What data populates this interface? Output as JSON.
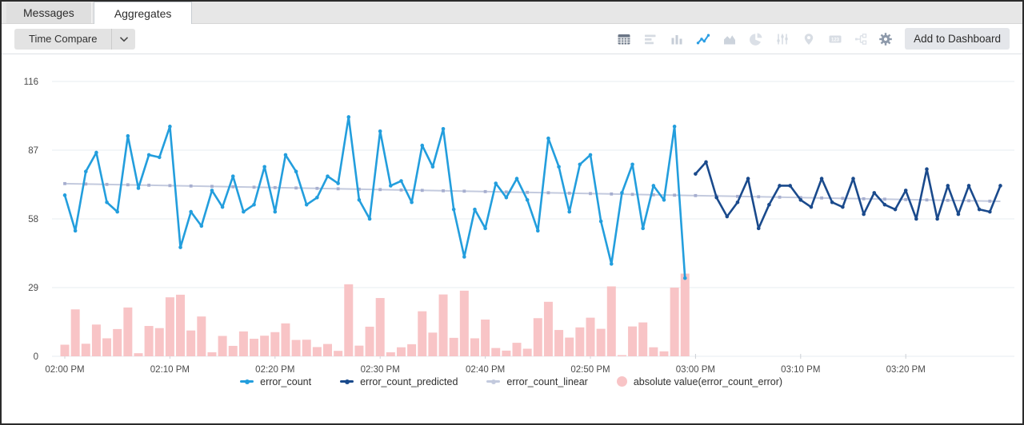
{
  "tabs": [
    {
      "label": "Messages",
      "active": false
    },
    {
      "label": "Aggregates",
      "active": true
    }
  ],
  "toolbar": {
    "time_compare_label": "Time Compare",
    "add_to_dashboard_label": "Add to Dashboard",
    "icons": [
      {
        "name": "table-icon",
        "shape": "table",
        "color": "#6b7686",
        "active": false
      },
      {
        "name": "horizontal-bar-chart-icon",
        "shape": "hbars",
        "color": "#d6dbe2",
        "active": false
      },
      {
        "name": "column-chart-icon",
        "shape": "columns",
        "color": "#c6cdd7",
        "active": false
      },
      {
        "name": "line-chart-icon",
        "shape": "line",
        "color": "#2d9fe4",
        "active": true
      },
      {
        "name": "area-chart-icon",
        "shape": "area",
        "color": "#ccd3dc",
        "active": false
      },
      {
        "name": "pie-chart-icon",
        "shape": "pie",
        "color": "#dbe0e7",
        "active": false
      },
      {
        "name": "sliders-icon",
        "shape": "sliders",
        "color": "#d6dbe2",
        "active": false
      },
      {
        "name": "map-pin-icon",
        "shape": "pin",
        "color": "#d8dde4",
        "active": false
      },
      {
        "name": "number-format-icon",
        "shape": "num123",
        "color": "#d8dde4",
        "active": false
      },
      {
        "name": "hierarchy-icon",
        "shape": "tree",
        "color": "#dde2e8",
        "active": false
      }
    ],
    "gear_icon": {
      "name": "gear-icon",
      "color": "#8e9aab"
    }
  },
  "chart_data": {
    "type": "line",
    "title": "",
    "xlabel": "",
    "ylabel": "",
    "grid": true,
    "legend_position": "bottom",
    "y_axis": {
      "ticks": [
        0,
        29,
        58,
        87,
        116
      ],
      "ylim": [
        0,
        116
      ]
    },
    "x_axis": {
      "tick_labels": [
        "02:00 PM",
        "02:10 PM",
        "02:20 PM",
        "02:30 PM",
        "02:40 PM",
        "02:50 PM",
        "03:00 PM",
        "03:10 PM",
        "03:20 PM"
      ],
      "minutes_per_tick": 10,
      "start_time": "02:00 PM",
      "point_interval_minutes": 1
    },
    "series": [
      {
        "name": "error_count",
        "type": "line",
        "color": "#239edd",
        "start_minute": 0,
        "step_minutes": 1,
        "values": [
          68,
          53,
          78,
          86,
          65,
          61,
          93,
          71,
          85,
          84,
          97,
          46,
          61,
          55,
          70,
          63,
          76,
          61,
          64,
          80,
          61,
          85,
          78,
          64,
          67,
          76,
          73,
          101,
          66,
          58,
          95,
          72,
          74,
          65,
          89,
          80,
          96,
          62,
          42,
          62,
          54,
          73,
          67,
          75,
          66,
          53,
          92,
          80,
          61,
          81,
          85,
          57,
          39,
          69,
          81,
          54,
          72,
          66,
          97,
          33
        ]
      },
      {
        "name": "error_count_predicted",
        "type": "line",
        "color": "#1a4a8c",
        "start_minute": 60,
        "step_minutes": 1,
        "values": [
          77,
          82,
          67,
          59,
          65,
          75,
          54,
          64,
          72,
          72,
          66,
          63,
          75,
          65,
          63,
          75,
          60,
          69,
          64,
          62,
          70,
          58,
          79,
          58,
          72,
          60,
          72,
          62,
          61,
          72
        ]
      },
      {
        "name": "error_count_linear",
        "type": "trend",
        "color": "#c3cade",
        "marker_color": "#a6aecf",
        "start_minute": 0,
        "end_minute": 89,
        "start_value": 72.9,
        "end_value": 65.4
      },
      {
        "name": "absolute value(error_count_error)",
        "type": "bar",
        "color": "#f8c4c6",
        "start_minute": 0,
        "step_minutes": 1,
        "values": [
          4.9,
          19.8,
          5.3,
          13.4,
          7.6,
          11.5,
          20.6,
          1.3,
          12.8,
          11.9,
          24.9,
          26,
          10.9,
          16.8,
          1.7,
          8.6,
          4.4,
          10.5,
          7.4,
          8.7,
          10.2,
          13.9,
          6.9,
          7,
          3.9,
          5.2,
          2.3,
          30.4,
          4.5,
          12.5,
          24.6,
          1.7,
          3.8,
          5.1,
          19,
          10,
          26.1,
          7.8,
          27.7,
          7.6,
          15.5,
          3.5,
          2.4,
          5.7,
          3.2,
          16.1,
          23,
          11.1,
          7.9,
          12.2,
          16.3,
          11.6,
          29.5,
          0.5,
          12.6,
          14.3,
          3.8,
          2.1,
          29,
          34.9
        ]
      }
    ]
  },
  "colors": {
    "gridline": "#e7edf2",
    "axis_text": "#4b4b4b",
    "tick_mark": "#ccd0d5",
    "accent_blue": "#2d9fe4"
  }
}
